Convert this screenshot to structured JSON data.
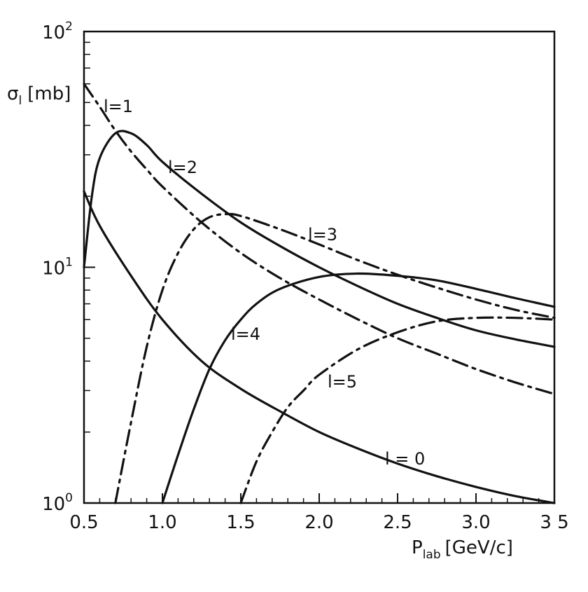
{
  "chart_data": {
    "type": "line",
    "title": "",
    "xlabel": "P",
    "xlabel_sub": "lab",
    "xlabel_unit": "[GeV/c]",
    "ylabel": "σ",
    "ylabel_sub": "l",
    "ylabel_unit": "[mb]",
    "x_scale": "linear",
    "y_scale": "log",
    "xlim": [
      0.5,
      3.5
    ],
    "ylim": [
      1,
      100
    ],
    "grid": false,
    "legend": "none",
    "x_ticks": [
      {
        "value": 0.5,
        "label": "0.5"
      },
      {
        "value": 1.0,
        "label": "1.0"
      },
      {
        "value": 1.5,
        "label": "1.5"
      },
      {
        "value": 2.0,
        "label": "2.0"
      },
      {
        "value": 2.5,
        "label": "2.5"
      },
      {
        "value": 3.0,
        "label": "3.0"
      },
      {
        "value": 3.5,
        "label": "3 5"
      }
    ],
    "y_ticks": [
      {
        "value": 1,
        "base": "10",
        "exp": "0"
      },
      {
        "value": 10,
        "base": "10",
        "exp": "1"
      },
      {
        "value": 100,
        "base": "10",
        "exp": "2"
      }
    ],
    "series": [
      {
        "name": "l = 0",
        "style": "solid",
        "x": [
          0.5,
          0.6,
          0.8,
          1.0,
          1.25,
          1.5,
          1.75,
          2.0,
          2.25,
          2.5,
          2.75,
          3.0,
          3.25,
          3.5
        ],
        "y": [
          21,
          15,
          9.2,
          6.0,
          4.0,
          3.05,
          2.45,
          2.0,
          1.7,
          1.47,
          1.3,
          1.17,
          1.07,
          1.0
        ]
      },
      {
        "name": "l=1",
        "style": "dashdot",
        "x": [
          0.5,
          0.6,
          0.7,
          0.8,
          0.9,
          1.0,
          1.25,
          1.5,
          1.75,
          2.0,
          2.25,
          2.5,
          2.75,
          3.0,
          3.25,
          3.5
        ],
        "y": [
          60,
          48,
          38,
          31,
          26,
          22,
          15.5,
          11.5,
          9.0,
          7.3,
          6.0,
          5.0,
          4.3,
          3.7,
          3.25,
          2.9
        ]
      },
      {
        "name": "l=2",
        "style": "solid",
        "x": [
          0.5,
          0.55,
          0.6,
          0.7,
          0.8,
          0.9,
          1.0,
          1.25,
          1.5,
          1.75,
          2.0,
          2.25,
          2.5,
          2.75,
          3.0,
          3.25,
          3.5
        ],
        "y": [
          10,
          20,
          29,
          37,
          37,
          33,
          28,
          20.5,
          15.5,
          12.3,
          10.0,
          8.3,
          7.0,
          6.1,
          5.4,
          4.95,
          4.6
        ]
      },
      {
        "name": "l=3",
        "style": "dashdot",
        "x": [
          0.7,
          0.8,
          0.9,
          1.0,
          1.1,
          1.2,
          1.3,
          1.4,
          1.5,
          1.75,
          2.0,
          2.25,
          2.5,
          2.75,
          3.0,
          3.25,
          3.5
        ],
        "y": [
          1.0,
          2.2,
          4.6,
          8.0,
          11.5,
          14.5,
          16.3,
          16.8,
          16.5,
          14.5,
          12.5,
          10.7,
          9.3,
          8.2,
          7.3,
          6.6,
          6.1
        ]
      },
      {
        "name": "l=4",
        "style": "solid",
        "x": [
          1.0,
          1.1,
          1.2,
          1.3,
          1.4,
          1.5,
          1.6,
          1.75,
          2.0,
          2.25,
          2.5,
          2.75,
          3.0,
          3.25,
          3.5
        ],
        "y": [
          1.0,
          1.6,
          2.5,
          3.7,
          4.9,
          6.0,
          7.0,
          8.1,
          9.1,
          9.4,
          9.2,
          8.8,
          8.1,
          7.4,
          6.8
        ]
      },
      {
        "name": "l=5",
        "style": "dashdot",
        "x": [
          1.5,
          1.6,
          1.7,
          1.8,
          1.9,
          2.0,
          2.25,
          2.5,
          2.75,
          3.0,
          3.25,
          3.5
        ],
        "y": [
          1.0,
          1.5,
          2.0,
          2.55,
          3.0,
          3.5,
          4.5,
          5.3,
          5.9,
          6.1,
          6.1,
          6.0
        ]
      }
    ],
    "curve_labels": [
      "l=1",
      "l=2",
      "l=3",
      "l=4",
      "l=5",
      "l = 0"
    ]
  }
}
